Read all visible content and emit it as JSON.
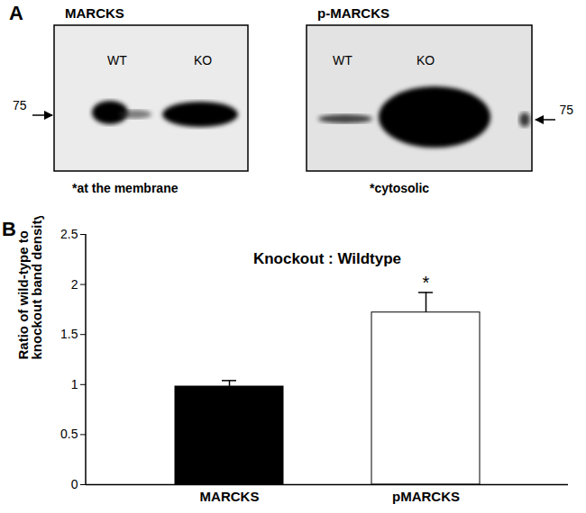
{
  "blots": {
    "panel_label": "A",
    "marker_label": "75",
    "panels": [
      {
        "title": "MARCKS",
        "lanes": [
          "WT",
          "KO"
        ],
        "caption": "*at the membrane"
      },
      {
        "title": "p-MARCKS",
        "lanes": [
          "WT",
          "KO"
        ],
        "caption": "*cytosolic"
      }
    ]
  },
  "chart_data": {
    "type": "bar",
    "panel_label": "B",
    "title": "Knockout : Wildtype",
    "y_label": "Ratio of wild-type to knockout band density",
    "categories": [
      "MARCKS",
      "pMARCKS"
    ],
    "values": [
      0.98,
      1.72
    ],
    "errors": [
      0.06,
      0.2
    ],
    "colors": [
      "#000000",
      "#ffffff"
    ],
    "ylim": [
      0,
      2.5
    ],
    "yticks": [
      0,
      0.5,
      1,
      1.5,
      2,
      2.5
    ],
    "grid": false,
    "annotations": [
      {
        "category": "pMARCKS",
        "text": "*"
      }
    ]
  }
}
